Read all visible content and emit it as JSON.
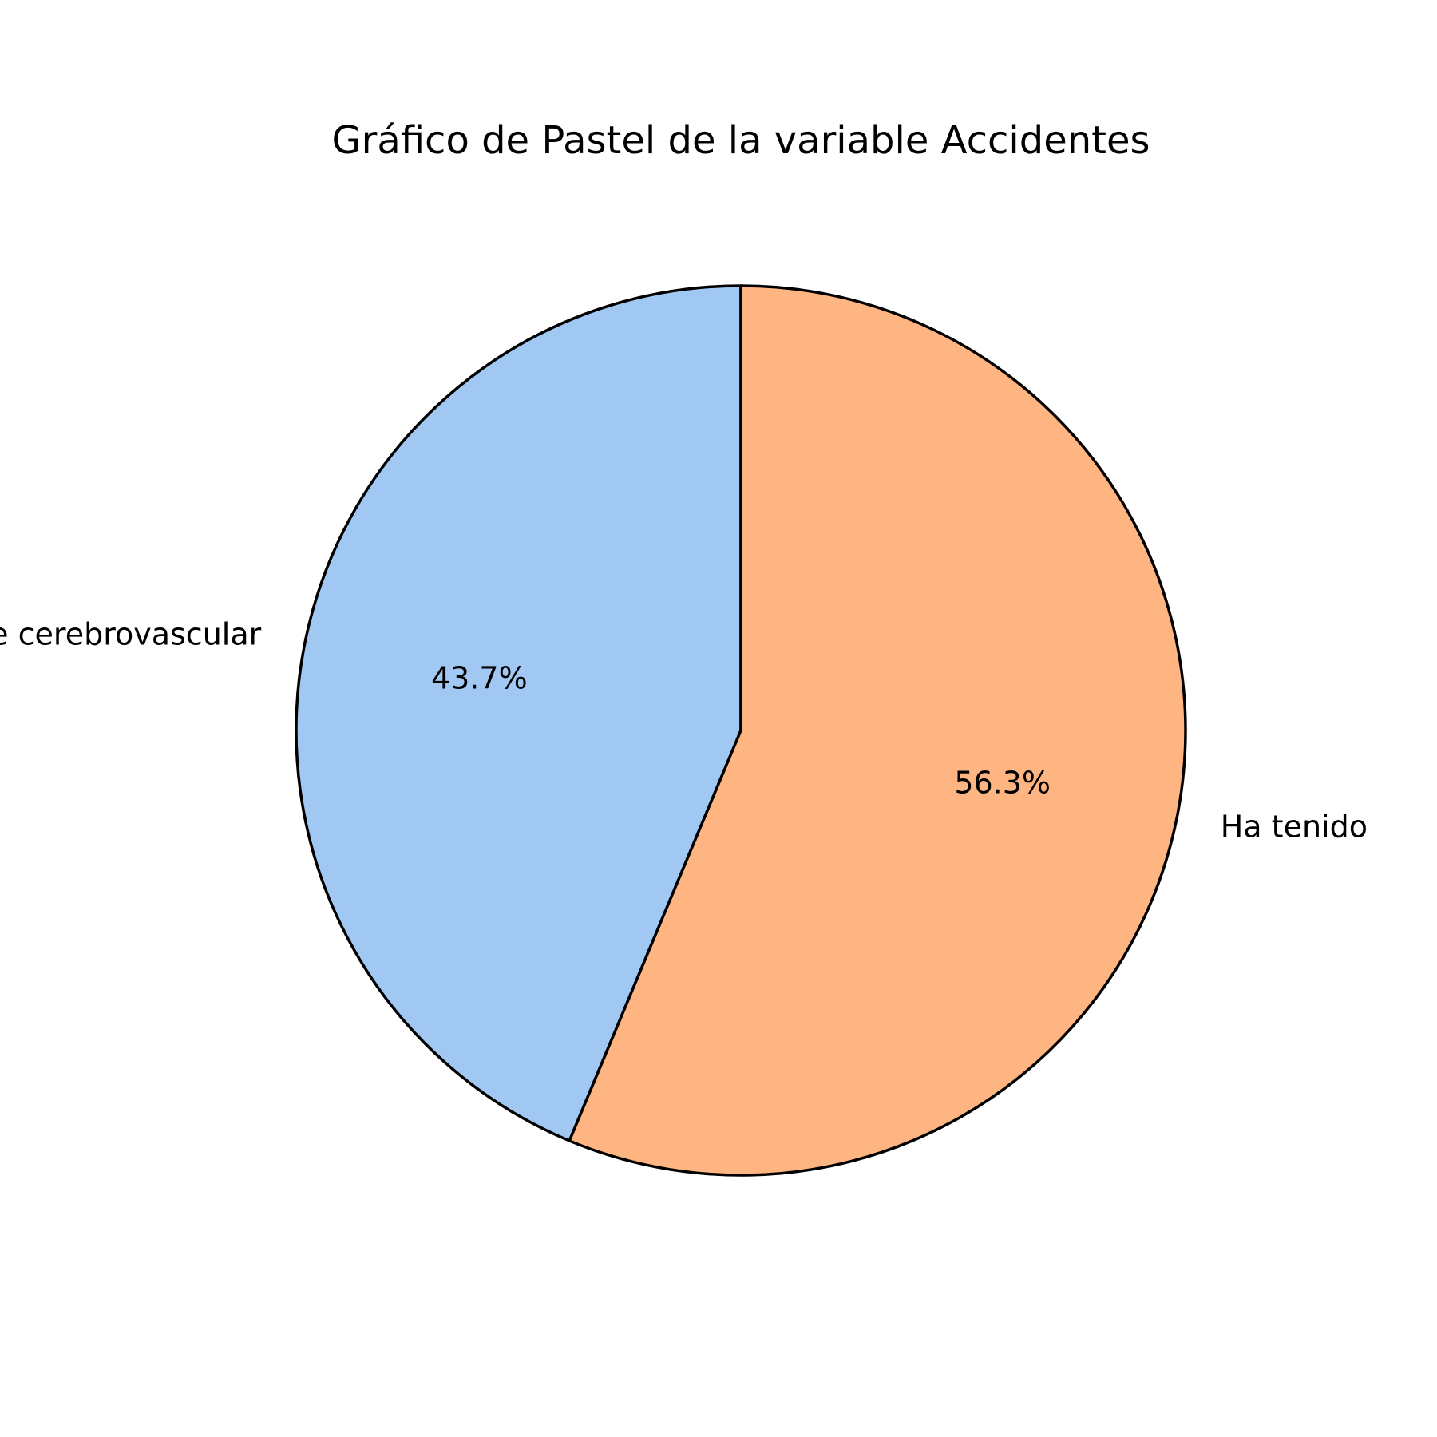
{
  "chart_data": {
    "type": "pie",
    "title": "Gráfico de Pastel de la variable Accidentes",
    "slices": [
      {
        "label": "No ha tenido accidente cerebrovascular",
        "value": 43.7,
        "pct_label": "43.7%",
        "color": "#a1c8f3"
      },
      {
        "label": "Ha tenido",
        "value": 56.3,
        "pct_label": "56.3%",
        "color": "#ffb582"
      }
    ],
    "start_angle_deg": 90,
    "direction": "counterclockwise",
    "edge_color": "#000000",
    "legend": "none"
  }
}
